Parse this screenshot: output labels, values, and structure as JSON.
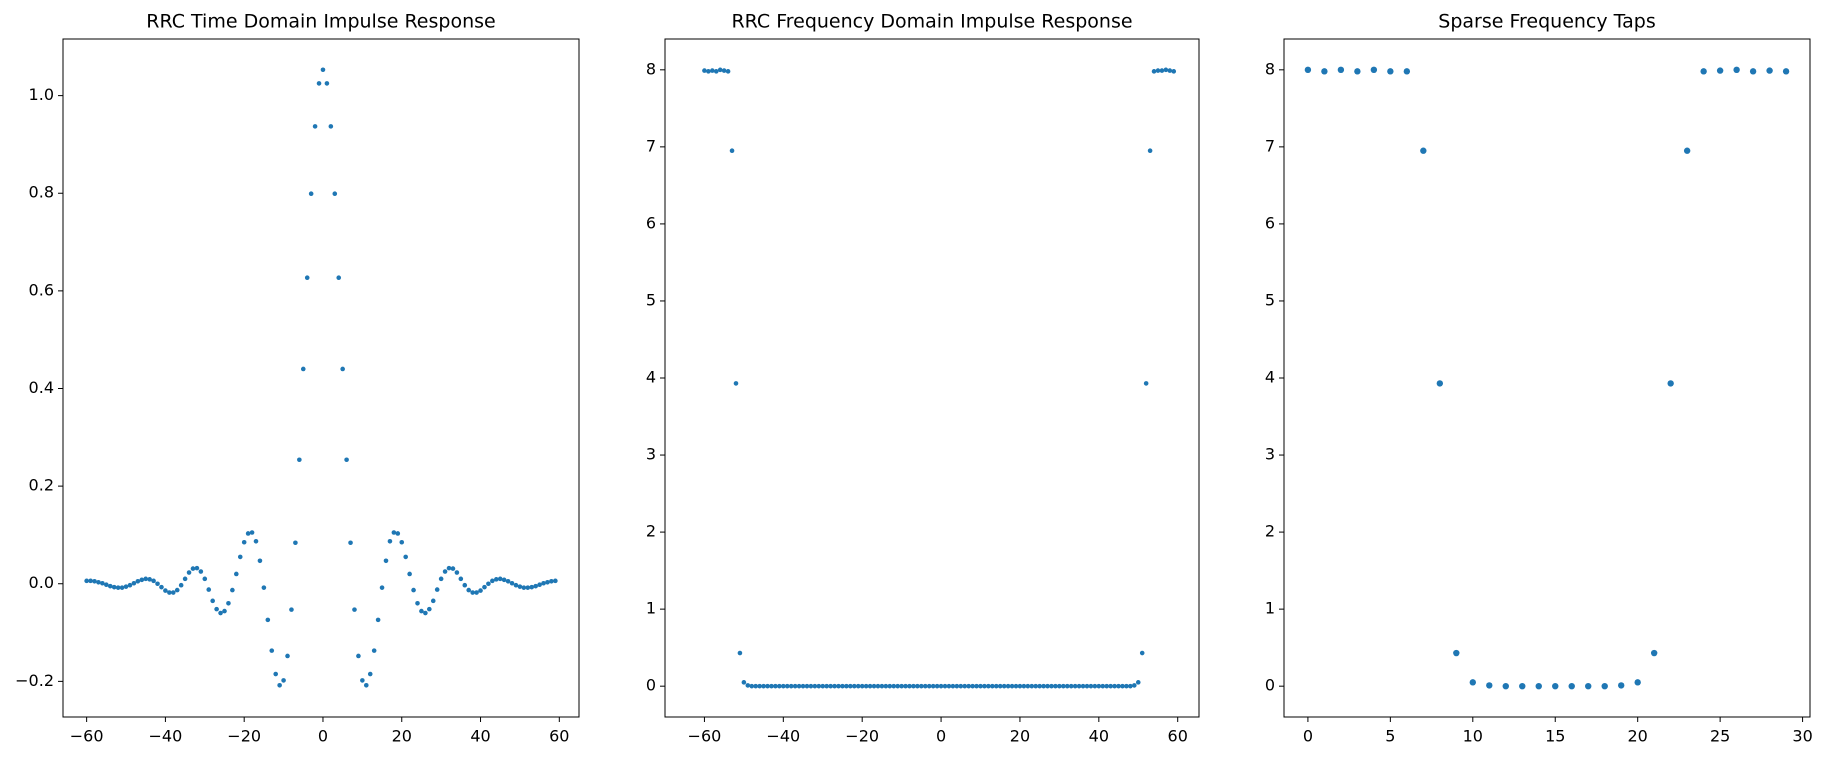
{
  "chart_data": [
    {
      "type": "scatter",
      "title": "RRC Time Domain Impulse Response",
      "color": "#1f77b4",
      "x": [
        -60,
        -59,
        -58,
        -57,
        -56,
        -55,
        -54,
        -53,
        -52,
        -51,
        -50,
        -49,
        -48,
        -47,
        -46,
        -45,
        -44,
        -43,
        -42,
        -41,
        -40,
        -39,
        -38,
        -37,
        -36,
        -35,
        -34,
        -33,
        -32,
        -31,
        -30,
        -29,
        -28,
        -27,
        -26,
        -25,
        -24,
        -23,
        -22,
        -21,
        -20,
        -19,
        -18,
        -17,
        -16,
        -15,
        -14,
        -13,
        -12,
        -11,
        -10,
        -9,
        -8,
        -7,
        -6,
        -5,
        -4,
        -3,
        -2,
        -1,
        0,
        1,
        2,
        3,
        4,
        5,
        6,
        7,
        8,
        9,
        10,
        11,
        12,
        13,
        14,
        15,
        16,
        17,
        18,
        19,
        20,
        21,
        22,
        23,
        24,
        25,
        26,
        27,
        28,
        29,
        30,
        31,
        32,
        33,
        34,
        35,
        36,
        37,
        38,
        39,
        40,
        41,
        42,
        43,
        44,
        45,
        46,
        47,
        48,
        49,
        50,
        51,
        52,
        53,
        54,
        55,
        56,
        57,
        58,
        59
      ],
      "values": [
        0.006,
        0.006,
        0.005,
        0.003,
        0.001,
        -0.002,
        -0.005,
        -0.007,
        -0.008,
        -0.008,
        -0.006,
        -0.003,
        0.001,
        0.005,
        0.008,
        0.01,
        0.009,
        0.006,
        0,
        -0.007,
        -0.014,
        -0.018,
        -0.018,
        -0.013,
        -0.003,
        0.01,
        0.023,
        0.031,
        0.032,
        0.025,
        0.01,
        -0.012,
        -0.035,
        -0.052,
        -0.06,
        -0.056,
        -0.04,
        -0.013,
        0.02,
        0.055,
        0.085,
        0.103,
        0.105,
        0.087,
        0.047,
        -0.008,
        -0.074,
        -0.137,
        -0.185,
        -0.208,
        -0.198,
        -0.148,
        -0.053,
        0.084,
        0.254,
        0.44,
        0.627,
        0.799,
        0.937,
        1.025,
        1.053,
        1.025,
        0.937,
        0.799,
        0.627,
        0.44,
        0.254,
        0.084,
        -0.053,
        -0.148,
        -0.198,
        -0.208,
        -0.185,
        -0.137,
        -0.074,
        -0.008,
        0.047,
        0.087,
        0.105,
        0.103,
        0.085,
        0.055,
        0.02,
        -0.013,
        -0.04,
        -0.056,
        -0.06,
        -0.052,
        -0.035,
        -0.012,
        0.01,
        0.025,
        0.032,
        0.031,
        0.023,
        0.01,
        -0.003,
        -0.013,
        -0.018,
        -0.018,
        -0.014,
        -0.007,
        0,
        0.006,
        0.009,
        0.01,
        0.008,
        0.005,
        0.001,
        -0.003,
        -0.006,
        -0.008,
        -0.008,
        -0.007,
        -0.005,
        -0.002,
        0.001,
        0.003,
        0.005,
        0.006
      ],
      "xlim": [
        -66,
        65
      ],
      "ylim": [
        -0.273,
        1.116
      ],
      "xticks": [
        {
          "value": -60,
          "label": "−60"
        },
        {
          "value": -40,
          "label": "−40"
        },
        {
          "value": -20,
          "label": "−20"
        },
        0,
        20,
        40,
        60
      ],
      "yticks": [
        {
          "value": -0.2,
          "label": "−0.2"
        },
        {
          "value": 0,
          "label": "0.0"
        },
        0.2,
        0.4,
        0.6,
        0.8,
        {
          "value": 1,
          "label": "1.0"
        }
      ]
    },
    {
      "type": "scatter",
      "title": "RRC Frequency Domain Impulse Response",
      "color": "#1f77b4",
      "x": [
        -60,
        -59,
        -58,
        -57,
        -56,
        -55,
        -54,
        -53,
        -52,
        -51,
        -50,
        -49,
        -48,
        -47,
        -46,
        -45,
        -44,
        -43,
        -42,
        -41,
        -40,
        -39,
        -38,
        -37,
        -36,
        -35,
        -34,
        -33,
        -32,
        -31,
        -30,
        -29,
        -28,
        -27,
        -26,
        -25,
        -24,
        -23,
        -22,
        -21,
        -20,
        -19,
        -18,
        -17,
        -16,
        -15,
        -14,
        -13,
        -12,
        -11,
        -10,
        -9,
        -8,
        -7,
        -6,
        -5,
        -4,
        -3,
        -2,
        -1,
        0,
        1,
        2,
        3,
        4,
        5,
        6,
        7,
        8,
        9,
        10,
        11,
        12,
        13,
        14,
        15,
        16,
        17,
        18,
        19,
        20,
        21,
        22,
        23,
        24,
        25,
        26,
        27,
        28,
        29,
        30,
        31,
        32,
        33,
        34,
        35,
        36,
        37,
        38,
        39,
        40,
        41,
        42,
        43,
        44,
        45,
        46,
        47,
        48,
        49,
        50,
        51,
        52,
        53,
        54,
        55,
        56,
        57,
        58,
        59
      ],
      "values": [
        7.99,
        7.98,
        7.99,
        7.98,
        8.0,
        7.99,
        7.98,
        6.95,
        3.93,
        0.43,
        0.05,
        0.01,
        0,
        0,
        0,
        0,
        0,
        0,
        0,
        0,
        0,
        0,
        0,
        0,
        0,
        0,
        0,
        0,
        0,
        0,
        0,
        0,
        0,
        0,
        0,
        0,
        0,
        0,
        0,
        0,
        0,
        0,
        0,
        0,
        0,
        0,
        0,
        0,
        0,
        0,
        0,
        0,
        0,
        0,
        0,
        0,
        0,
        0,
        0,
        0,
        0,
        0,
        0,
        0,
        0,
        0,
        0,
        0,
        0,
        0,
        0,
        0,
        0,
        0,
        0,
        0,
        0,
        0,
        0,
        0,
        0,
        0,
        0,
        0,
        0,
        0,
        0,
        0,
        0,
        0,
        0,
        0,
        0,
        0,
        0,
        0,
        0,
        0,
        0,
        0,
        0,
        0,
        0,
        0,
        0,
        0,
        0,
        0,
        0,
        0.01,
        0.05,
        0.43,
        3.93,
        6.95,
        7.98,
        7.99,
        7.99,
        8.0,
        7.99,
        7.98
      ],
      "xlim": [
        -70,
        65.4
      ],
      "ylim": [
        -0.4,
        8.4
      ],
      "xticks": [
        {
          "value": -60,
          "label": "−60"
        },
        {
          "value": -40,
          "label": "−40"
        },
        {
          "value": -20,
          "label": "−20"
        },
        0,
        20,
        40,
        60
      ],
      "yticks": [
        0,
        1,
        2,
        3,
        4,
        5,
        6,
        7,
        8
      ]
    },
    {
      "type": "scatter",
      "title": "Sparse Frequency Taps",
      "color": "#1f77b4",
      "x": [
        0,
        1,
        2,
        3,
        4,
        5,
        6,
        7,
        8,
        9,
        10,
        11,
        12,
        13,
        14,
        15,
        16,
        17,
        18,
        19,
        20,
        21,
        22,
        23,
        24,
        25,
        26,
        27,
        28,
        29
      ],
      "values": [
        8.0,
        7.98,
        8.0,
        7.98,
        8.0,
        7.98,
        7.98,
        6.95,
        3.93,
        0.43,
        0.05,
        0.01,
        0,
        0,
        0,
        0,
        0,
        0,
        0,
        0.01,
        0.05,
        0.43,
        3.93,
        6.95,
        7.98,
        7.99,
        8.0,
        7.98,
        7.99,
        7.98
      ],
      "xlim": [
        -1.45,
        30.45
      ],
      "ylim": [
        -0.4,
        8.4
      ],
      "xticks": [
        0,
        5,
        10,
        15,
        20,
        25,
        30
      ],
      "yticks": [
        0,
        1,
        2,
        3,
        4,
        5,
        6,
        7,
        8
      ]
    }
  ]
}
